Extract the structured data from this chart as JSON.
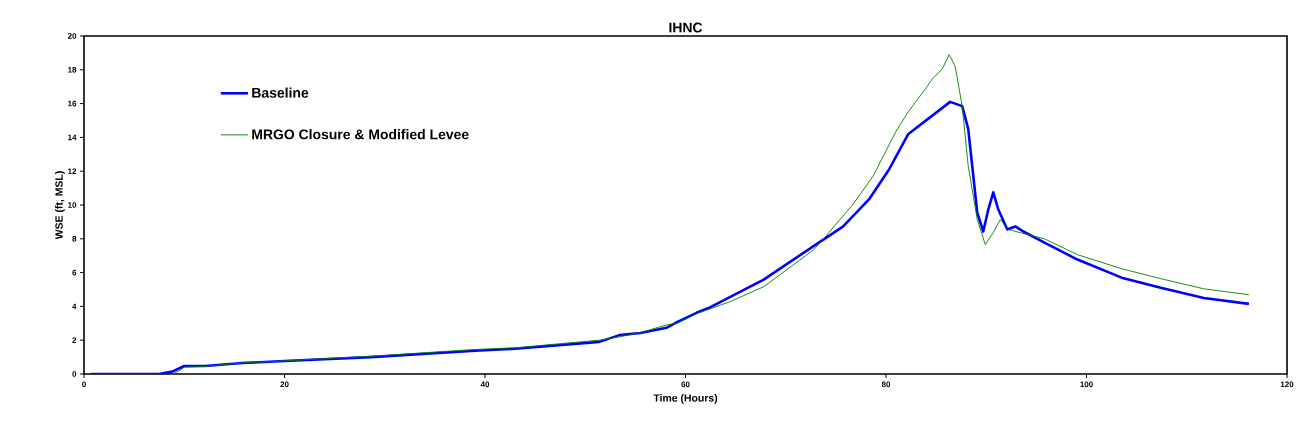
{
  "chart_data": {
    "type": "line",
    "title": "IHNC",
    "xlabel": "Time (Hours)",
    "ylabel": "WSE (ft, MSL)",
    "xlim": [
      0,
      120
    ],
    "ylim": [
      0,
      20
    ],
    "xticks": [
      0,
      20,
      40,
      60,
      80,
      100,
      120
    ],
    "yticks": [
      0,
      2,
      4,
      6,
      8,
      10,
      12,
      14,
      16,
      18,
      20
    ],
    "legend": "top left",
    "grid": false,
    "marker": "none",
    "line_style": "solid",
    "series": [
      {
        "name": "Baseline",
        "color": "#0000ff",
        "x": [
          0.7,
          7.5,
          8.8,
          10.0,
          12.1,
          15.8,
          20,
          28.6,
          39,
          43,
          51.4,
          53.4,
          55.5,
          58.1,
          59.2,
          61.1,
          62.3,
          66.4,
          67.8,
          72.7,
          75.7,
          78.3,
          80.3,
          82.2,
          86.4,
          87.6,
          88.2,
          88.6,
          89.1,
          89.7,
          90.2,
          90.7,
          91.2,
          92.1,
          92.9,
          93.7,
          95.8,
          99.1,
          103.5,
          107.4,
          111.7,
          116.2
        ],
        "values": [
          0,
          0,
          0.14,
          0.47,
          0.47,
          0.65,
          0.77,
          1.0,
          1.37,
          1.49,
          1.9,
          2.3,
          2.43,
          2.73,
          3.08,
          3.62,
          3.9,
          5.16,
          5.58,
          7.54,
          8.72,
          10.33,
          12.1,
          14.18,
          16.1,
          15.85,
          14.5,
          12.3,
          9.55,
          8.43,
          9.73,
          10.75,
          9.73,
          8.55,
          8.73,
          8.43,
          7.77,
          6.77,
          5.7,
          5.1,
          4.5,
          4.15
        ]
      },
      {
        "name": "MRGO Closure & Modified Levee",
        "color": "#008000",
        "x": [
          8.8,
          9.4,
          10.0,
          12.1,
          15.8,
          20,
          28.6,
          39,
          43,
          51.4,
          53.4,
          55.5,
          58.1,
          59.2,
          61.1,
          64.4,
          67.8,
          72.8,
          74.3,
          76.7,
          78.7,
          81.0,
          82.2,
          84.1,
          84.6,
          85.6,
          86.3,
          86.9,
          87.6,
          88.2,
          89.1,
          89.9,
          90.7,
          91.4,
          92.2,
          94.1,
          95.8,
          99.1,
          103.5,
          107.4,
          111.7,
          116.2
        ],
        "values": [
          0,
          0.15,
          0.4,
          0.45,
          0.65,
          0.78,
          1.05,
          1.45,
          1.55,
          2.0,
          2.2,
          2.45,
          2.9,
          3.0,
          3.57,
          4.27,
          5.16,
          7.36,
          8.37,
          10.03,
          11.7,
          14.36,
          15.5,
          17.0,
          17.45,
          18.04,
          18.9,
          18.2,
          15.85,
          12.3,
          9.14,
          7.66,
          8.37,
          9.14,
          8.55,
          8.25,
          8.0,
          7.06,
          6.23,
          5.64,
          5.04,
          4.69
        ]
      }
    ]
  }
}
